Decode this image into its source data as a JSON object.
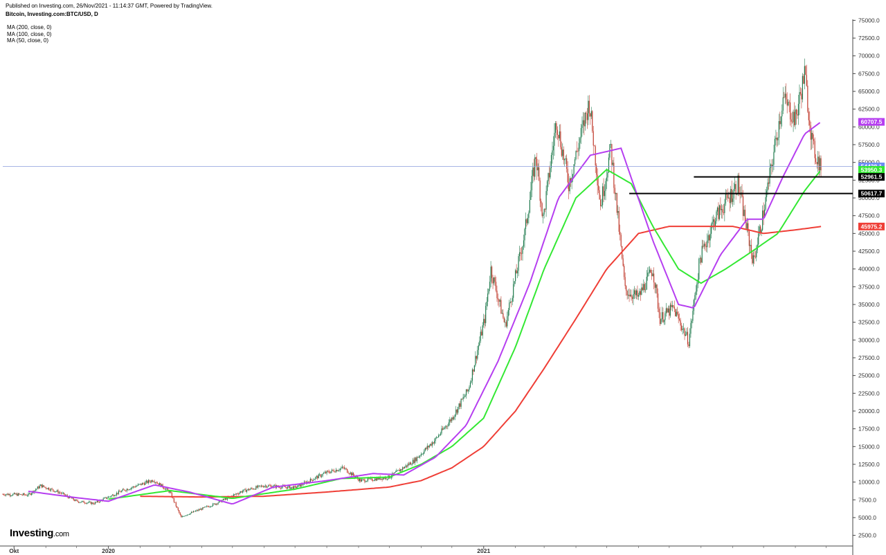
{
  "header": {
    "published": "Published on Investing.com, 26/Nov/2021 - 11:14:37 GMT, Powered by TradingView.",
    "symbol": "Bitcoin, Investing.com:BTC/USD, D"
  },
  "legend": [
    {
      "label": "MA (200, close, 0)",
      "color": "#ef3e36"
    },
    {
      "label": "MA (100, close, 0)",
      "color": "#33e833"
    },
    {
      "label": "MA (50, close, 0)",
      "color": "#b63ef0"
    }
  ],
  "logo": {
    "name": "Investing",
    "suffix": ".com"
  },
  "colors": {
    "up": "#1f7a4d",
    "down": "#c0392b",
    "ma200": "#ef3e36",
    "ma100": "#33e833",
    "ma50": "#b63ef0",
    "last_price_line": "#8a9bdc"
  },
  "chart_data": {
    "type": "line",
    "title": "Bitcoin, Investing.com:BTC/USD, D",
    "xlabel": "",
    "ylabel": "",
    "x_tick_labels": [
      {
        "label": "Okt",
        "x": "2019-10"
      },
      {
        "label": "2020",
        "x": "2020-01"
      },
      {
        "label": "2021",
        "x": "2021-01"
      }
    ],
    "y_ticks": [
      2500,
      5000,
      7500,
      10000,
      12500,
      15000,
      17500,
      20000,
      22500,
      25000,
      27500,
      30000,
      32500,
      35000,
      37500,
      40000,
      42500,
      45000,
      47500,
      50000,
      52500,
      55000,
      57500,
      60000,
      62500,
      65000,
      67500,
      70000,
      72500,
      75000
    ],
    "ylim": [
      1000,
      76500
    ],
    "xlim": [
      "2019-09-20",
      "2021-12-27"
    ],
    "series": [
      {
        "name": "BTC/USD",
        "kind": "price",
        "x": [
          "2019-09-20",
          "2019-10-15",
          "2019-10-27",
          "2019-11-15",
          "2019-12-01",
          "2019-12-18",
          "2020-01-15",
          "2020-02-14",
          "2020-03-01",
          "2020-03-12",
          "2020-03-15",
          "2020-04-15",
          "2020-05-10",
          "2020-06-01",
          "2020-07-01",
          "2020-07-31",
          "2020-08-17",
          "2020-09-03",
          "2020-10-01",
          "2020-10-25",
          "2020-11-15",
          "2020-12-01",
          "2020-12-17",
          "2021-01-02",
          "2021-01-08",
          "2021-01-22",
          "2021-02-10",
          "2021-02-21",
          "2021-02-28",
          "2021-03-13",
          "2021-03-25",
          "2021-04-14",
          "2021-04-25",
          "2021-05-05",
          "2021-05-19",
          "2021-06-01",
          "2021-06-15",
          "2021-06-22",
          "2021-07-05",
          "2021-07-20",
          "2021-07-31",
          "2021-08-14",
          "2021-09-06",
          "2021-09-21",
          "2021-10-01",
          "2021-10-20",
          "2021-11-01",
          "2021-11-10",
          "2021-11-18",
          "2021-11-26"
        ],
        "values": [
          8300,
          8200,
          9500,
          8500,
          7300,
          7000,
          8800,
          10300,
          8600,
          5000,
          5300,
          7000,
          8700,
          9500,
          9200,
          11300,
          12000,
          10200,
          10700,
          13000,
          16000,
          19000,
          23000,
          33000,
          40000,
          32000,
          45000,
          56000,
          47000,
          61000,
          52000,
          63500,
          49000,
          57000,
          37000,
          36000,
          40000,
          33000,
          34500,
          29800,
          41500,
          47000,
          52000,
          41000,
          48000,
          64000,
          61000,
          67500,
          57000,
          54438
        ]
      },
      {
        "name": "MA (200, close, 0)",
        "kind": "ma",
        "color": "#ef3e36",
        "x": [
          "2020-02-01",
          "2020-04-01",
          "2020-06-01",
          "2020-08-01",
          "2020-10-01",
          "2020-11-01",
          "2020-12-01",
          "2021-01-01",
          "2021-02-01",
          "2021-03-01",
          "2021-04-01",
          "2021-05-01",
          "2021-06-01",
          "2021-07-01",
          "2021-08-01",
          "2021-09-01",
          "2021-10-01",
          "2021-11-01",
          "2021-11-26"
        ],
        "values": [
          8000,
          7900,
          8000,
          8600,
          9300,
          10200,
          12000,
          15000,
          20000,
          26000,
          33000,
          40000,
          45000,
          46000,
          46000,
          46000,
          45000,
          45500,
          45975
        ]
      },
      {
        "name": "MA (100, close, 0)",
        "kind": "ma",
        "color": "#33e833",
        "x": [
          "2020-01-01",
          "2020-03-01",
          "2020-05-01",
          "2020-07-01",
          "2020-08-15",
          "2020-10-01",
          "2020-11-01",
          "2020-12-01",
          "2021-01-01",
          "2021-02-01",
          "2021-03-01",
          "2021-04-01",
          "2021-05-01",
          "2021-05-25",
          "2021-06-15",
          "2021-07-10",
          "2021-08-01",
          "2021-08-25",
          "2021-09-15",
          "2021-10-15",
          "2021-11-10",
          "2021-11-26"
        ],
        "values": [
          7600,
          8800,
          7700,
          9000,
          10500,
          10700,
          12500,
          15000,
          19000,
          29000,
          40000,
          50000,
          54000,
          52000,
          46000,
          40000,
          38000,
          40000,
          42000,
          45000,
          51000,
          53950
        ]
      },
      {
        "name": "MA (50, close, 0)",
        "kind": "ma",
        "color": "#b63ef0",
        "x": [
          "2019-10-15",
          "2019-12-01",
          "2020-01-01",
          "2020-02-15",
          "2020-03-20",
          "2020-05-01",
          "2020-06-10",
          "2020-08-01",
          "2020-09-15",
          "2020-10-15",
          "2020-11-15",
          "2020-12-15",
          "2021-01-15",
          "2021-02-15",
          "2021-03-15",
          "2021-04-15",
          "2021-05-15",
          "2021-06-15",
          "2021-07-10",
          "2021-07-25",
          "2021-08-20",
          "2021-09-15",
          "2021-10-01",
          "2021-10-20",
          "2021-11-10",
          "2021-11-26"
        ],
        "values": [
          8700,
          7800,
          7300,
          9600,
          8600,
          6900,
          9300,
          10200,
          11200,
          11000,
          13500,
          18000,
          27000,
          38000,
          50000,
          56000,
          57000,
          44000,
          35000,
          34500,
          42000,
          47000,
          47000,
          53000,
          59000,
          60707
        ]
      }
    ],
    "horizontal_segments": [
      {
        "from": "2021-07-25",
        "to": "2021-12-27",
        "value": 52961.5
      },
      {
        "from": "2021-05-23",
        "to": "2021-12-27",
        "value": 50617.7
      }
    ],
    "price_tags": [
      {
        "label": "60707.5",
        "value": 60707.5,
        "color": "#b63ef0"
      },
      {
        "label": "54438.1",
        "value": 54438.1,
        "color": "#6f8cf3"
      },
      {
        "label": "53950.3",
        "value": 53950.3,
        "color": "#33e833"
      },
      {
        "label": "52961.5",
        "value": 52961.5,
        "color": "#000000"
      },
      {
        "label": "50617.7",
        "value": 50617.7,
        "color": "#000000"
      },
      {
        "label": "45975.2",
        "value": 45975.2,
        "color": "#ef3e36"
      }
    ],
    "last_price": 54438.1,
    "grid": false,
    "legend_position": "top-left"
  }
}
